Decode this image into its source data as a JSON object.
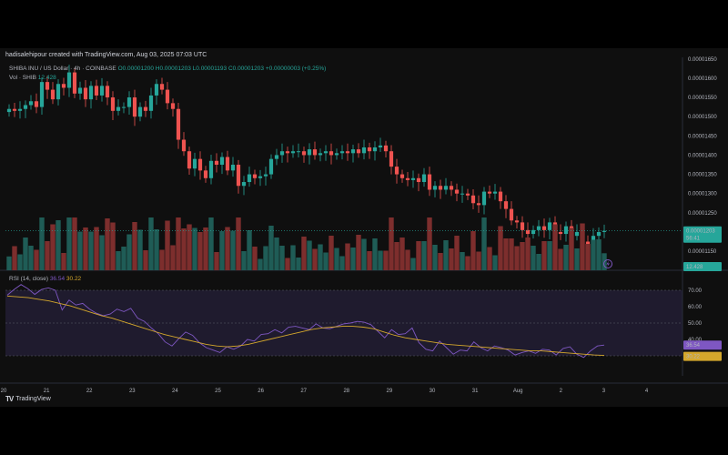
{
  "header": {
    "attribution": "hadisalehipour created with TradingView.com, Aug 03, 2025 07:03 UTC"
  },
  "legend": {
    "symbol": "SHIBA INU / US Dollar · 4h · COINBASE",
    "open": "O0.00001200",
    "high": "H0.00001203",
    "low": "L0.00001193",
    "close": "C0.00001203",
    "change": "+0.00000003 (+0.25%)",
    "volume_label": "Vol · SHIB",
    "volume_value": "12.428"
  },
  "rsi_legend": {
    "label": "RSI (14, close)",
    "rsi_value": "36.54",
    "ma_value": "30.22"
  },
  "price_badge": {
    "value": "0.00001203",
    "countdown": "56:41"
  },
  "volume_badge": "12.428",
  "rsi_badges": {
    "rsi": "36.54",
    "ma": "30.22"
  },
  "footer": {
    "logo": "TV",
    "brand": "TradingView"
  },
  "colors": {
    "up": "#26a69a",
    "down": "#ef5350",
    "rsi": "#7e57c2",
    "rsi_ma": "#d4a72c"
  },
  "chart_data": [
    {
      "type": "candlestick",
      "title": "SHIBA INU / US Dollar · 4h · COINBASE",
      "ylim": [
        1.11e-05,
        1.64e-05
      ],
      "y_ticks": [
        "0.00001150",
        "0.00001200",
        "0.00001250",
        "0.00001300",
        "0.00001350",
        "0.00001400",
        "0.00001450",
        "0.00001500",
        "0.00001550",
        "0.00001600",
        "0.00001650"
      ],
      "x_ticks": [
        "20",
        "21",
        "22",
        "23",
        "24",
        "25",
        "26",
        "27",
        "28",
        "29",
        "30",
        "31",
        "Aug",
        "2",
        "3",
        "4"
      ],
      "close": [
        1.52,
        1.515,
        1.52,
        1.53,
        1.54,
        1.525,
        1.59,
        1.57,
        1.545,
        1.585,
        1.575,
        1.615,
        1.56,
        1.575,
        1.545,
        1.58,
        1.555,
        1.58,
        1.55,
        1.515,
        1.525,
        1.525,
        1.55,
        1.5,
        1.525,
        1.515,
        1.555,
        1.585,
        1.57,
        1.535,
        1.52,
        1.44,
        1.41,
        1.365,
        1.39,
        1.36,
        1.34,
        1.385,
        1.375,
        1.395,
        1.36,
        1.375,
        1.32,
        1.33,
        1.35,
        1.34,
        1.345,
        1.35,
        1.39,
        1.4,
        1.41,
        1.405,
        1.41,
        1.41,
        1.4,
        1.415,
        1.4,
        1.405,
        1.41,
        1.4,
        1.405,
        1.41,
        1.405,
        1.415,
        1.405,
        1.42,
        1.41,
        1.42,
        1.425,
        1.41,
        1.37,
        1.35,
        1.34,
        1.335,
        1.34,
        1.33,
        1.35,
        1.31,
        1.32,
        1.31,
        1.32,
        1.31,
        1.3,
        1.3,
        1.295,
        1.275,
        1.27,
        1.305,
        1.3,
        1.305,
        1.28,
        1.26,
        1.23,
        1.225,
        1.205,
        1.195,
        1.205,
        1.215,
        1.205,
        1.225,
        1.2,
        1.195,
        1.215,
        1.19,
        1.2,
        1.175,
        1.165,
        1.19,
        1.2,
        1.203
      ],
      "rsi": [
        67.0,
        70.5,
        73.5,
        71.0,
        67.5,
        70.5,
        71.5,
        70.0,
        58.0,
        64.0,
        61.0,
        62.0,
        58.5,
        56.0,
        54.5,
        55.5,
        58.5,
        57.0,
        59.0,
        53.0,
        51.0,
        47.0,
        43.5,
        38.5,
        36.0,
        40.5,
        44.5,
        42.5,
        38.0,
        35.0,
        33.5,
        32.0,
        35.5,
        34.0,
        36.0,
        40.0,
        39.0,
        43.0,
        43.5,
        46.0,
        44.0,
        47.5,
        48.0,
        47.0,
        46.0,
        49.5,
        47.0,
        46.5,
        48.0,
        49.5,
        50.0,
        51.0,
        50.5,
        49.0,
        45.0,
        41.0,
        46.0,
        43.0,
        43.5,
        47.0,
        38.0,
        34.0,
        33.0,
        39.0,
        35.0,
        31.0,
        33.5,
        33.0,
        38.5,
        35.0,
        33.0,
        36.0,
        35.0,
        33.5,
        30.5,
        32.0,
        33.0,
        31.5,
        34.0,
        33.5,
        30.5,
        34.5,
        35.5,
        31.0,
        29.0,
        33.0,
        36.0,
        36.54
      ],
      "rsi_ma": [
        66.5,
        66.0,
        65.5,
        64.5,
        63.5,
        62.0,
        60.5,
        58.5,
        56.5,
        54.5,
        53.0,
        51.0,
        49.0,
        47.0,
        45.0,
        43.0,
        41.5,
        40.0,
        38.5,
        37.0,
        36.0,
        35.5,
        36.0,
        37.0,
        38.5,
        40.0,
        41.5,
        43.0,
        44.5,
        46.0,
        47.0,
        47.5,
        48.0,
        48.0,
        47.5,
        46.5,
        44.5,
        42.5,
        41.0,
        40.0,
        39.0,
        38.0,
        37.0,
        36.5,
        36.0,
        35.5,
        35.0,
        34.5,
        34.0,
        33.5,
        33.0,
        33.0,
        32.5,
        32.0,
        31.5,
        31.0,
        30.5,
        30.22
      ],
      "rsi_ylim": [
        20,
        80
      ],
      "rsi_ticks": [
        "40.00",
        "50.00",
        "60.00",
        "70.00"
      ],
      "rsi_bands": [
        30,
        50,
        70
      ]
    }
  ]
}
